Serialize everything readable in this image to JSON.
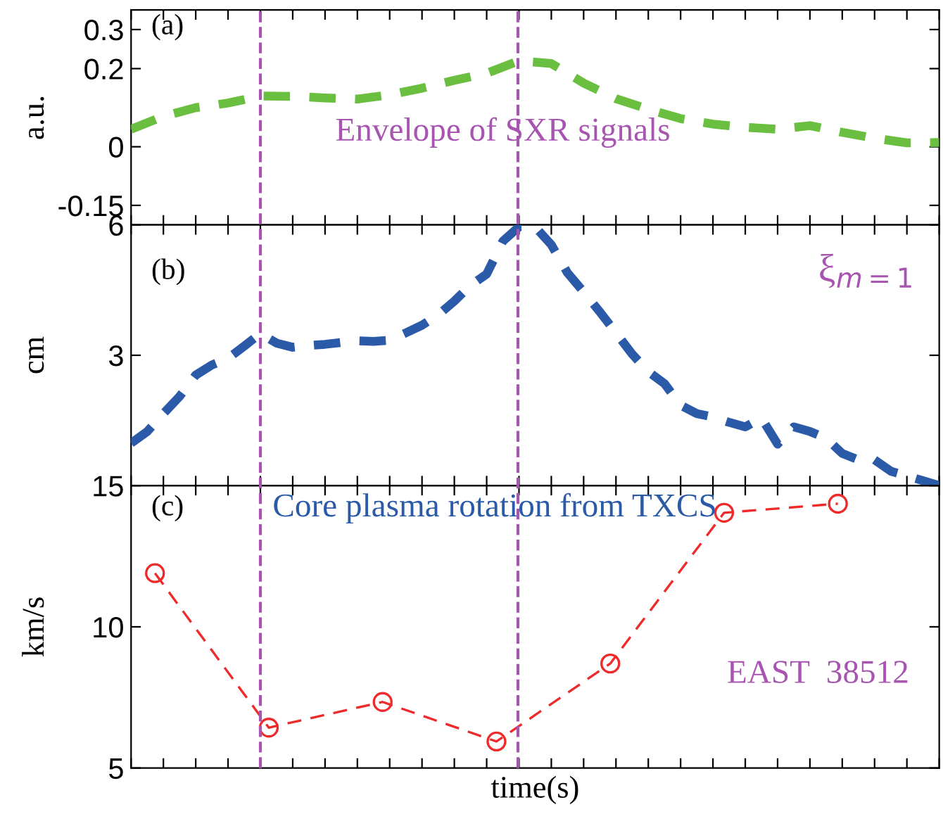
{
  "chart_data": [
    {
      "type": "line",
      "ylabel": "a.u.",
      "annotations": [
        "(a)",
        "Envelope of SXR signals"
      ],
      "categories": [
        null,
        null,
        null,
        null,
        null,
        null,
        null,
        null,
        null,
        null,
        null,
        null,
        null,
        null,
        null,
        null,
        null,
        null,
        null,
        null,
        null,
        null,
        null,
        null,
        null,
        null
      ],
      "ylim": [
        -0.2,
        0.35
      ],
      "yticks": [
        -0.15,
        0,
        0.2,
        0.3
      ],
      "tick_labels": "y",
      "line_style": "dashed",
      "marker": "none",
      "series": [
        {
          "color": "#6abf40",
          "values": [
            0.045,
            0.078,
            0.1,
            0.112,
            0.13,
            0.129,
            0.125,
            0.122,
            0.133,
            0.15,
            0.17,
            0.188,
            0.22,
            0.213,
            0.163,
            0.123,
            0.096,
            0.072,
            0.058,
            0.05,
            0.045,
            0.054,
            0.037,
            0.022,
            0.01,
            0.011
          ]
        }
      ]
    },
    {
      "type": "line",
      "ylabel": "cm",
      "annotations": [
        "(b)",
        "ξ$_{m=1}$"
      ],
      "categories": [
        null,
        null,
        null,
        null,
        null,
        null,
        null,
        null,
        null,
        null,
        null,
        null,
        null,
        null,
        null,
        null,
        null,
        null,
        null,
        null,
        null,
        null,
        null,
        null,
        null,
        null,
        null,
        null,
        null,
        null,
        null,
        null,
        null,
        null,
        null,
        null,
        null,
        null,
        null,
        null,
        null,
        null,
        null,
        null,
        null,
        null,
        null,
        null,
        null,
        null,
        null
      ],
      "ylim": [
        1.5,
        6
      ],
      "yticks": [
        {
          "value": 1.5,
          "label": null
        },
        3,
        6
      ],
      "log": "y",
      "tick_labels": "y",
      "line_style": "dashed",
      "marker": "none",
      "series": [
        {
          "color": "#2a5aa8",
          "values": [
            1.88,
            2.0,
            2.2,
            2.41,
            2.7,
            2.85,
            2.95,
            3.15,
            3.37,
            3.2,
            3.13,
            3.16,
            3.18,
            3.21,
            3.24,
            3.23,
            3.25,
            3.38,
            3.52,
            3.72,
            4.0,
            4.35,
            4.62,
            5.5,
            5.94,
            5.94,
            5.4,
            4.65,
            4.2,
            3.78,
            3.38,
            3.02,
            2.75,
            2.58,
            2.3,
            2.2,
            2.16,
            2.1,
            2.05,
            2.15,
            1.87,
            2.05,
            2.0,
            1.93,
            1.78,
            1.72,
            1.72,
            1.62,
            1.58,
            1.54,
            1.5
          ]
        }
      ]
    },
    {
      "type": "line",
      "xlabel": "time(s)",
      "ylabel": "km/s",
      "annotations": [
        "(c)",
        "Core plasma rotation from TXCS",
        "EAST  38512"
      ],
      "categories": [
        null,
        null,
        null,
        null,
        null,
        null,
        null
      ],
      "ylim": [
        5,
        15
      ],
      "yticks": [
        5,
        10,
        15
      ],
      "tick_labels": "y",
      "line_style": "dashed",
      "marker": "circle",
      "series": [
        {
          "color": "#ee2a2a",
          "values": [
            11.9,
            6.43,
            7.34,
            5.94,
            8.7,
            14.04,
            14.36
          ]
        }
      ]
    }
  ]
}
